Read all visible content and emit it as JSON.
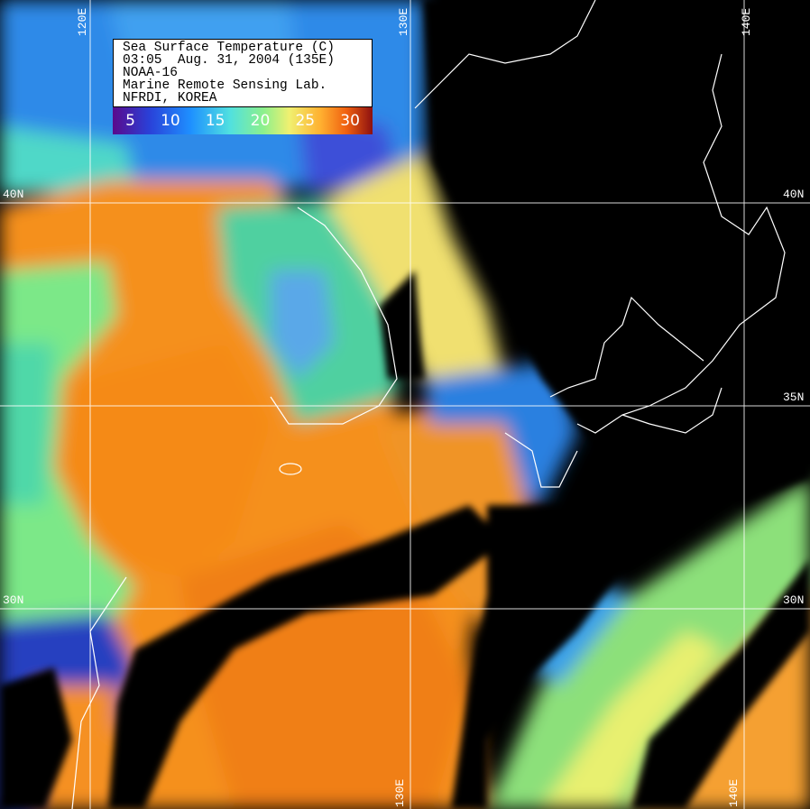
{
  "legend": {
    "title": "Sea Surface Temperature (C)",
    "datetime": "03:05  Aug. 31, 2004 (135E)",
    "satellite": "NOAA-16",
    "lab": "Marine Remote Sensing Lab.",
    "institute": "NFRDI, KOREA",
    "scale_ticks": [
      "5",
      "10",
      "15",
      "20",
      "25",
      "30"
    ],
    "scale_colors": [
      "#5a0a8c",
      "#2a40d8",
      "#1e90ff",
      "#50e0e0",
      "#8cf08c",
      "#f0f070",
      "#ffb030",
      "#f06010",
      "#8c1010"
    ]
  },
  "grid": {
    "longitudes": [
      "120E",
      "130E",
      "140E"
    ],
    "latitudes": [
      "40N",
      "35N",
      "30N"
    ]
  },
  "colors": {
    "land_cloud": "#000000",
    "coastline": "#ffffff",
    "grid": "#ffffff"
  }
}
